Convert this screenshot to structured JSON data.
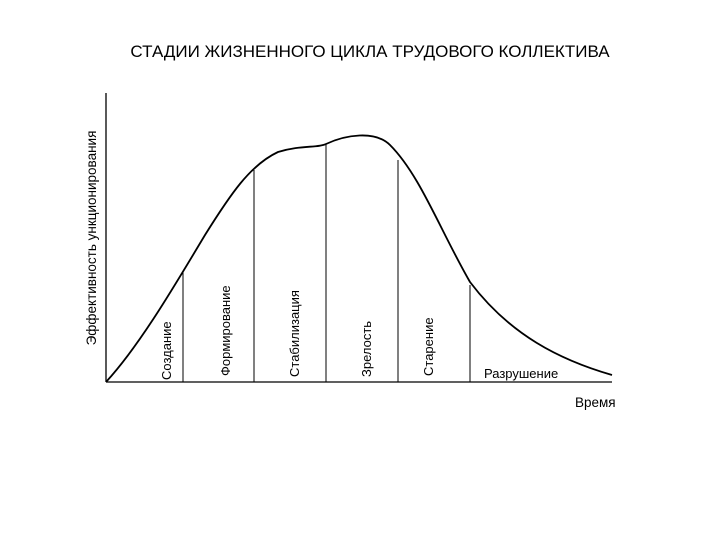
{
  "title": "СТАДИИ ЖИЗНЕННОГО ЦИКЛА  ТРУДОВОГО КОЛЛЕКТИВА",
  "y_axis_label": "Эффективность ункционирования",
  "x_axis_label": "Время",
  "stages": [
    {
      "id": "creation",
      "label": "Создание"
    },
    {
      "id": "formation",
      "label": "Формирование"
    },
    {
      "id": "stabilization",
      "label": "Стабилизация"
    },
    {
      "id": "maturity",
      "label": "Зрелость"
    },
    {
      "id": "aging",
      "label": "Старение"
    },
    {
      "id": "destruction",
      "label": "Разрушение"
    }
  ],
  "colors": {
    "line": "#000000",
    "background": "#ffffff"
  }
}
